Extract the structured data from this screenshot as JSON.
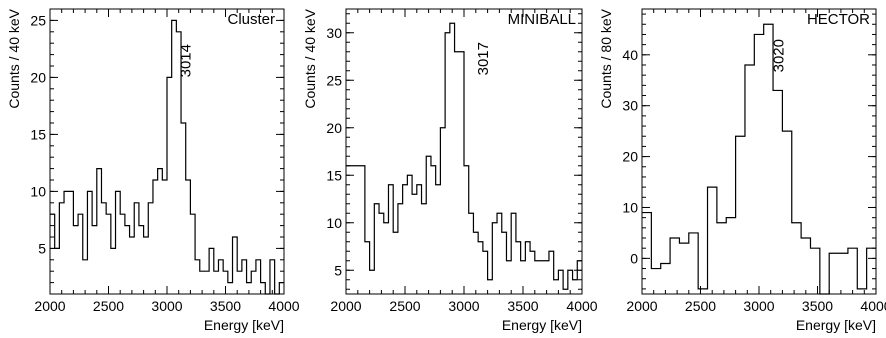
{
  "chart_data": [
    {
      "type": "histogram",
      "label": "Cluster",
      "peak_label": "3014",
      "peak_energy": 3014,
      "xlabel": "Energy [keV]",
      "ylabel": "Counts / 40 keV",
      "xlim": [
        2000,
        4000
      ],
      "ylim": [
        1,
        26
      ],
      "xticks": [
        2000,
        2500,
        3000,
        3500,
        4000
      ],
      "xtick_labels": [
        "2000",
        "2500",
        "3000",
        "3500",
        "4000"
      ],
      "yticks": [
        5,
        10,
        15,
        20,
        25
      ],
      "ytick_labels": [
        "5",
        "10",
        "15",
        "20",
        "25"
      ],
      "bin_width": 40,
      "x": [
        2000,
        2040,
        2080,
        2120,
        2160,
        2200,
        2240,
        2280,
        2320,
        2360,
        2400,
        2440,
        2480,
        2520,
        2560,
        2600,
        2640,
        2680,
        2720,
        2760,
        2800,
        2840,
        2880,
        2920,
        2960,
        3000,
        3040,
        3080,
        3120,
        3160,
        3200,
        3240,
        3280,
        3320,
        3360,
        3400,
        3440,
        3480,
        3520,
        3560,
        3600,
        3640,
        3680,
        3720,
        3760,
        3800,
        3840,
        3880,
        3920,
        3960
      ],
      "values": [
        8,
        5,
        9,
        10,
        10,
        7,
        8,
        4,
        10,
        7,
        12,
        9,
        8,
        5,
        10,
        8,
        7,
        6,
        9,
        7,
        6,
        9,
        11,
        12,
        11,
        20,
        25,
        24,
        16,
        11,
        8,
        4,
        3,
        3,
        5,
        3,
        4,
        3,
        2,
        6,
        3,
        4,
        2,
        3,
        4,
        2,
        1,
        4,
        1,
        2
      ]
    },
    {
      "type": "histogram",
      "label": "MINIBALL",
      "peak_label": "3017",
      "peak_energy": 3017,
      "xlabel": "Energy [keV]",
      "ylabel": "Counts / 40 keV",
      "xlim": [
        2000,
        4000
      ],
      "ylim": [
        2.5,
        32.5
      ],
      "xticks": [
        2000,
        2500,
        3000,
        3500,
        4000
      ],
      "xtick_labels": [
        "2000",
        "2500",
        "3000",
        "3500",
        "4000"
      ],
      "yticks": [
        5,
        10,
        15,
        20,
        25,
        30
      ],
      "ytick_labels": [
        "5",
        "10",
        "15",
        "20",
        "25",
        "30"
      ],
      "bin_width": 40,
      "x": [
        2000,
        2040,
        2080,
        2120,
        2160,
        2200,
        2240,
        2280,
        2320,
        2360,
        2400,
        2440,
        2480,
        2520,
        2560,
        2600,
        2640,
        2680,
        2720,
        2760,
        2800,
        2840,
        2880,
        2920,
        2960,
        3000,
        3040,
        3080,
        3120,
        3160,
        3200,
        3240,
        3280,
        3320,
        3360,
        3400,
        3440,
        3480,
        3520,
        3560,
        3600,
        3640,
        3680,
        3720,
        3760,
        3800,
        3840,
        3880,
        3920,
        3960
      ],
      "values": [
        16,
        16,
        16,
        16,
        8,
        5,
        12,
        11,
        10,
        14,
        9,
        12,
        14,
        15,
        13,
        14,
        12,
        17,
        16,
        14,
        20,
        30,
        31,
        28,
        28,
        16,
        11,
        9,
        8,
        7,
        4,
        10,
        11,
        9,
        6,
        11,
        8,
        6,
        8,
        7,
        6,
        6,
        6,
        7,
        4,
        5,
        3,
        5,
        4,
        6
      ]
    },
    {
      "type": "histogram",
      "label": "HECTOR",
      "peak_label": "3020",
      "peak_energy": 3020,
      "xlabel": "Energy [keV]",
      "ylabel": "Counts / 80 keV",
      "xlim": [
        2000,
        4000
      ],
      "ylim": [
        -7,
        49
      ],
      "xticks": [
        2000,
        2500,
        3000,
        3500,
        4000
      ],
      "xtick_labels": [
        "2000",
        "2500",
        "3000",
        "3500",
        "4000"
      ],
      "yticks": [
        0,
        10,
        20,
        30,
        40
      ],
      "ytick_labels": [
        "0",
        "10",
        "20",
        "30",
        "40"
      ],
      "bin_width": 80,
      "x": [
        2000,
        2080,
        2160,
        2240,
        2320,
        2400,
        2480,
        2560,
        2640,
        2720,
        2800,
        2880,
        2960,
        3040,
        3120,
        3200,
        3280,
        3360,
        3440,
        3520,
        3600,
        3680,
        3760,
        3840,
        3920
      ],
      "values": [
        9,
        -2,
        -1,
        4,
        3,
        5,
        -6,
        14,
        7,
        8,
        24,
        38,
        44,
        46,
        33,
        25,
        7,
        4,
        2,
        -7,
        1,
        1,
        2,
        -6,
        2
      ]
    }
  ]
}
